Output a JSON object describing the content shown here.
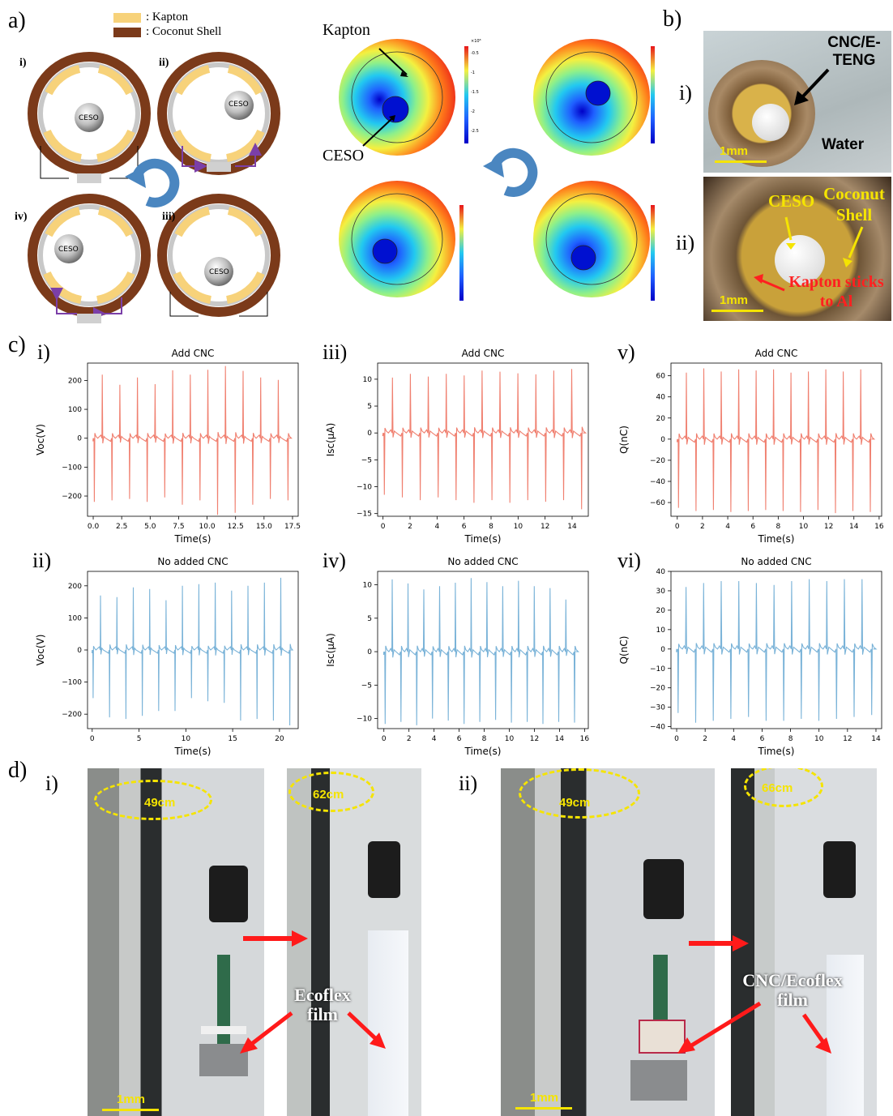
{
  "panel_a": {
    "label": "a)",
    "legend": [
      {
        "text": ": Kapton",
        "color": "#f7d27a"
      },
      {
        "text": ": Coconut Shell",
        "color": "#7b3a1a"
      }
    ],
    "stages": [
      "i)",
      "ii)",
      "iii)",
      "iv)"
    ],
    "ball_label": "CESO",
    "sim_labels": {
      "kapton": "Kapton",
      "ceso": "CESO"
    },
    "colorbar_exp": "×10⁸",
    "colorbar_ticks": [
      "-0.5",
      "-1",
      "-1.5",
      "-2",
      "-2.5"
    ]
  },
  "panel_b": {
    "label": "b)",
    "i_label": "i)",
    "ii_label": "ii)",
    "photo1": {
      "device": "CNC/E-TENG",
      "water": "Water",
      "scale": "1mm"
    },
    "photo2": {
      "ceso": "CESO",
      "shell": "Coconut Shell",
      "note": "Kapton sticks to Al",
      "scale": "1mm"
    }
  },
  "panel_c": {
    "label": "c)",
    "plots": [
      {
        "id": "c-i",
        "label": "i)",
        "title": "Add CNC",
        "ylabel": "Voc(V)",
        "xlabel": "Time(s)",
        "color": "#f08070",
        "xticks": [
          "0.0",
          "2.5",
          "5.0",
          "7.5",
          "10.0",
          "12.5",
          "15.0",
          "17.5"
        ],
        "yticks": [
          "200",
          "100",
          "0",
          "−100",
          "−200"
        ],
        "xlim": [
          -0.5,
          18
        ],
        "ylim": [
          -270,
          260
        ],
        "pos": [
          220,
          185,
          210,
          187,
          235,
          220,
          237,
          250,
          233,
          210,
          202
        ],
        "neg": [
          -220,
          -215,
          -210,
          -220,
          -205,
          -230,
          -215,
          -265,
          -258,
          -230,
          -210,
          -215
        ],
        "tmax": 17.2
      },
      {
        "id": "c-iii",
        "label": "iii)",
        "title": "Add CNC",
        "ylabel": "Isc(μA)",
        "xlabel": "Time(s)",
        "color": "#f08070",
        "xticks": [
          "0",
          "2",
          "4",
          "6",
          "8",
          "10",
          "12",
          "14"
        ],
        "yticks": [
          "10",
          "5",
          "0",
          "−5",
          "−10",
          "−15"
        ],
        "xlim": [
          -0.4,
          15.2
        ],
        "ylim": [
          -15.5,
          13
        ],
        "pos": [
          10.3,
          11,
          10.5,
          11,
          10.7,
          11.6,
          11.4,
          11.1,
          10.9,
          11.6,
          11.9
        ],
        "neg": [
          -11.5,
          -12,
          -12.5,
          -12,
          -12.5,
          -13,
          -12.5,
          -13,
          -12.5,
          -12.8,
          -12.5,
          -14.2
        ],
        "tmax": 14.8
      },
      {
        "id": "c-v",
        "label": "v)",
        "title": "Add CNC",
        "ylabel": "Q(nC)",
        "xlabel": "Time(s)",
        "color": "#f08070",
        "xticks": [
          "0",
          "2",
          "4",
          "6",
          "8",
          "10",
          "12",
          "14",
          "16"
        ],
        "yticks": [
          "60",
          "40",
          "20",
          "0",
          "−20",
          "−40",
          "−60"
        ],
        "xlim": [
          -0.5,
          16.2
        ],
        "ylim": [
          -73,
          72
        ],
        "pos": [
          63,
          67,
          64,
          66,
          65,
          66,
          63,
          64,
          66,
          64,
          66
        ],
        "neg": [
          -65,
          -68,
          -67,
          -69,
          -68,
          -67,
          -68,
          -69,
          -67,
          -70,
          -68,
          -69
        ],
        "tmax": 15.4
      },
      {
        "id": "c-ii",
        "label": "ii)",
        "title": "No added CNC",
        "ylabel": "Voc(V)",
        "xlabel": "Time(s)",
        "color": "#7ab3d8",
        "xticks": [
          "0",
          "5",
          "10",
          "15",
          "20"
        ],
        "yticks": [
          "200",
          "100",
          "0",
          "−100",
          "−200"
        ],
        "xlim": [
          -0.5,
          22
        ],
        "ylim": [
          -245,
          245
        ],
        "pos": [
          170,
          165,
          195,
          190,
          155,
          200,
          205,
          210,
          185,
          200,
          210,
          225
        ],
        "neg": [
          -150,
          -210,
          -215,
          -205,
          -190,
          -190,
          -150,
          -160,
          -165,
          -220,
          -215,
          -220,
          -235
        ],
        "tmax": 21.2
      },
      {
        "id": "c-iv",
        "label": "iv)",
        "title": "No added CNC",
        "ylabel": "Isc(μA)",
        "xlabel": "Time(s)",
        "color": "#7ab3d8",
        "xticks": [
          "0",
          "2",
          "4",
          "6",
          "8",
          "10",
          "12",
          "14",
          "16"
        ],
        "yticks": [
          "10",
          "5",
          "0",
          "−5",
          "−10"
        ],
        "xlim": [
          -0.5,
          16.3
        ],
        "ylim": [
          -11.5,
          12
        ],
        "pos": [
          10.8,
          10.2,
          9.3,
          9.8,
          10.3,
          11,
          10.4,
          9.8,
          10.6,
          9.8,
          9.5,
          7.8
        ],
        "neg": [
          -10.8,
          -10.5,
          -11,
          -10,
          -10.3,
          -10.8,
          -10.5,
          -10.2,
          -10.6,
          -10.5,
          -10.8,
          -10.5,
          -10.6
        ],
        "tmax": 15.3
      },
      {
        "id": "c-vi",
        "label": "vi)",
        "title": "No added CNC",
        "ylabel": "Q(nC)",
        "xlabel": "Time(s)",
        "color": "#7ab3d8",
        "xticks": [
          "0",
          "2",
          "4",
          "6",
          "8",
          "10",
          "12",
          "14"
        ],
        "yticks": [
          "40",
          "30",
          "20",
          "10",
          "0",
          "−10",
          "−20",
          "−30",
          "−40"
        ],
        "xlim": [
          -0.4,
          14.4
        ],
        "ylim": [
          -41,
          40
        ],
        "pos": [
          32,
          34,
          35,
          35,
          34,
          33,
          35,
          36,
          35,
          36,
          36
        ],
        "neg": [
          -33,
          -38,
          -37,
          -36,
          -35,
          -37,
          -37,
          -36,
          -37,
          -36,
          -35,
          -34
        ],
        "tmax": 13.8
      }
    ]
  },
  "panel_d": {
    "label": "d)",
    "i_label": "i)",
    "ii_label": "ii)",
    "i": {
      "start": "49cm",
      "end": "62cm",
      "film": "Ecoflex film",
      "scale": "1mm"
    },
    "ii": {
      "start": "49cm",
      "end": "66cm",
      "film": "CNC/Ecoflex film",
      "scale": "1mm"
    }
  }
}
